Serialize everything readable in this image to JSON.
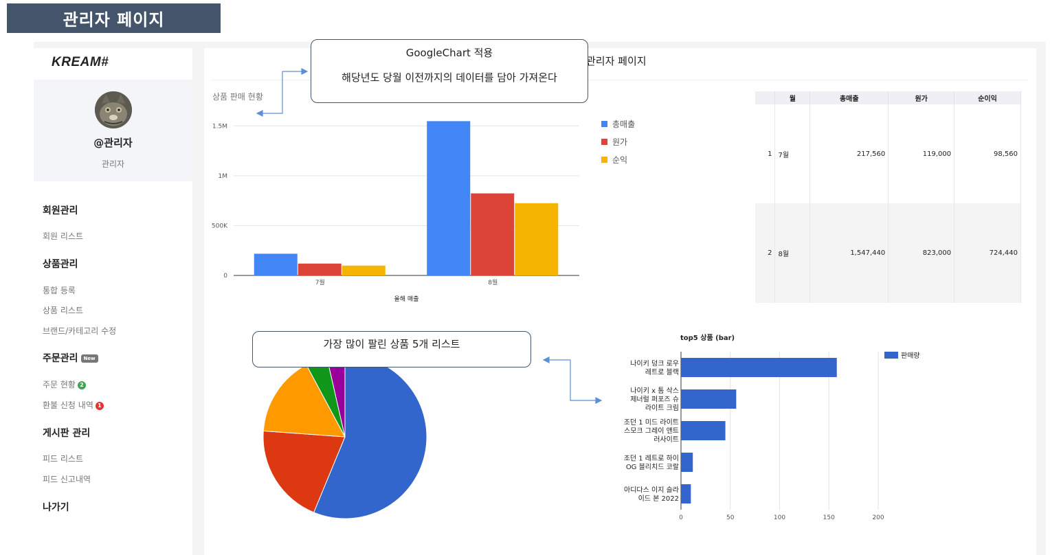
{
  "banner": {
    "title": "관리자 페이지"
  },
  "sidebar": {
    "logo": "KREAM#",
    "profile": {
      "name": "@관리자",
      "role": "관리자"
    },
    "sections": [
      {
        "heading": "회원관리",
        "items": [
          {
            "label": "회원 리스트"
          }
        ]
      },
      {
        "heading": "상품관리",
        "items": [
          {
            "label": "통합 등록"
          },
          {
            "label": "상품 리스트"
          },
          {
            "label": "브랜드/카테고리 수정"
          }
        ]
      },
      {
        "heading": "주문관리",
        "badge": "New",
        "items": [
          {
            "label": "주문 현황",
            "count": "2",
            "count_color": "#3fa556"
          },
          {
            "label": "환불 신청 내역",
            "count": "1",
            "count_color": "#e3342f"
          }
        ]
      },
      {
        "heading": "게시판 관리",
        "items": [
          {
            "label": "피드 리스트"
          },
          {
            "label": "피드 신고내역"
          }
        ]
      },
      {
        "heading": "나가기",
        "items": []
      }
    ]
  },
  "main": {
    "title": "관리자 페이지",
    "section_title": "상품 판매 현황",
    "callout_top": {
      "line1": "GoogleChart 적용",
      "line2": "해당년도 당월 이전까지의 데이터를 담아 가져온다"
    },
    "callout_bottom": {
      "text": "가장 많이 팔린 상품 5개 리스트"
    },
    "table": {
      "headers": [
        "",
        "월",
        "총매출",
        "원가",
        "순이익"
      ],
      "rows": [
        [
          "1",
          "7월",
          "217,560",
          "119,000",
          "98,560"
        ],
        [
          "2",
          "8월",
          "1,547,440",
          "823,000",
          "724,440"
        ]
      ]
    }
  },
  "colors": {
    "blue": "#4285f4",
    "red": "#db4437",
    "yellow": "#f4b400",
    "bar_blue": "#3366cc",
    "callout_border": "#44546a"
  },
  "chart_data": [
    {
      "type": "bar",
      "title": "",
      "xlabel": "올해 매출",
      "ylabel": "",
      "categories": [
        "7월",
        "8월"
      ],
      "series": [
        {
          "name": "총매출",
          "values": [
            217560,
            1547440
          ],
          "color": "#4285f4"
        },
        {
          "name": "원가",
          "values": [
            119000,
            823000
          ],
          "color": "#db4437"
        },
        {
          "name": "순익",
          "values": [
            98560,
            724440
          ],
          "color": "#f4b400"
        }
      ],
      "ylim": [
        0,
        1550000
      ],
      "yticks": [
        0,
        500000,
        1000000,
        1500000
      ],
      "ytick_labels": [
        "0",
        "500K",
        "1M",
        "1.5M"
      ],
      "legend": "right",
      "grid": true
    },
    {
      "type": "pie",
      "title": "",
      "slices": [
        {
          "value": 158,
          "color": "#3366cc"
        },
        {
          "value": 56,
          "color": "#dc3912"
        },
        {
          "value": 45,
          "color": "#ff9900"
        },
        {
          "value": 12,
          "color": "#109618"
        },
        {
          "value": 10,
          "color": "#990099"
        }
      ]
    },
    {
      "type": "bar",
      "orientation": "horizontal",
      "title": "top5 상품 (bar)",
      "categories": [
        [
          "나이키 덩크 로우",
          "레트로 블랙"
        ],
        [
          "나이키 x 톰 삭스",
          "제너럴 퍼포즈 슈",
          "라이트 크림"
        ],
        [
          "조던 1 미드 라이트",
          "스모크 그레이 앤트",
          "러사이트"
        ],
        [
          "조던 1 레트로 하이",
          "OG 블리치드 코랄"
        ],
        [
          "아디다스 이지 슬라",
          "이드 본 2022"
        ]
      ],
      "series": [
        {
          "name": "판매량",
          "values": [
            158,
            56,
            45,
            12,
            10
          ],
          "color": "#3366cc"
        }
      ],
      "xlim": [
        0,
        200
      ],
      "xticks": [
        0,
        50,
        100,
        150,
        200
      ],
      "legend": "right",
      "grid": true
    }
  ]
}
